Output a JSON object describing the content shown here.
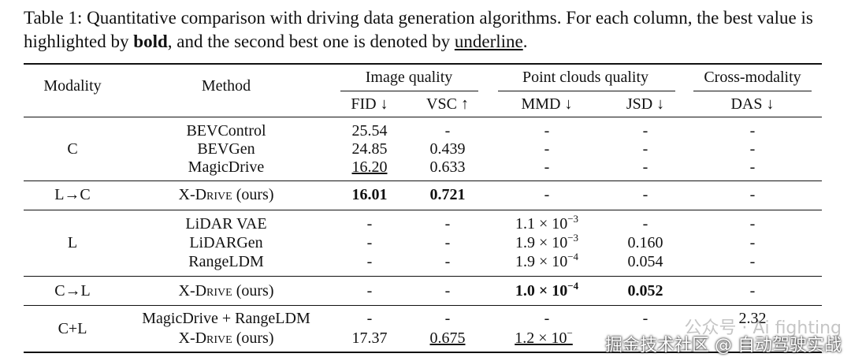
{
  "caption": {
    "prefix": "Table 1: Quantitative comparison with driving data generation algorithms. For each column, the best value is highlighted by ",
    "bold_word": "bold",
    "middle": ", and the second best one is denoted by ",
    "underline_word": "underline",
    "suffix": "."
  },
  "headers": {
    "modality": "Modality",
    "method": "Method",
    "image_quality": "Image quality",
    "point_clouds_quality": "Point clouds quality",
    "cross_modality": "Cross-modality",
    "fid": "FID ↓",
    "vsc": "VSC ↑",
    "mmd": "MMD ↓",
    "jsd": "JSD ↓",
    "das": "DAS ↓"
  },
  "groups": [
    {
      "modality": "C",
      "rows": [
        {
          "method": "BEVControl",
          "fid": "25.54",
          "vsc": "-",
          "mmd": "-",
          "jsd": "-",
          "das": "-"
        },
        {
          "method": "BEVGen",
          "fid": "24.85",
          "vsc": "0.439",
          "mmd": "-",
          "jsd": "-",
          "das": "-"
        },
        {
          "method": "MagicDrive",
          "fid": "16.20",
          "vsc": "0.633",
          "mmd": "-",
          "jsd": "-",
          "das": "-"
        }
      ]
    },
    {
      "modality": "L→C",
      "rows": [
        {
          "method_prefix": "X-",
          "method_sc": "Drive",
          "method_suffix": " (ours)",
          "fid": "16.01",
          "vsc": "0.721",
          "mmd": "-",
          "jsd": "-",
          "das": "-"
        }
      ]
    },
    {
      "modality": "L",
      "rows": [
        {
          "method": "LiDAR VAE",
          "fid": "-",
          "vsc": "-",
          "mmd_base": "1.1 × 10",
          "mmd_exp": "−3",
          "jsd": "-",
          "das": "-"
        },
        {
          "method": "LiDARGen",
          "fid": "-",
          "vsc": "-",
          "mmd_base": "1.9 × 10",
          "mmd_exp": "−3",
          "jsd": "0.160",
          "das": "-"
        },
        {
          "method": "RangeLDM",
          "fid": "-",
          "vsc": "-",
          "mmd_base": "1.9 × 10",
          "mmd_exp": "−4",
          "jsd": "0.054",
          "das": "-"
        }
      ]
    },
    {
      "modality": "C→L",
      "rows": [
        {
          "method_prefix": "X-",
          "method_sc": "Drive",
          "method_suffix": " (ours)",
          "fid": "-",
          "vsc": "-",
          "mmd_base": "1.0 × 10",
          "mmd_exp": "−4",
          "jsd": "0.052",
          "das": "-"
        }
      ]
    },
    {
      "modality": "C+L",
      "rows": [
        {
          "method": "MagicDrive + RangeLDM",
          "fid": "-",
          "vsc": "-",
          "mmd": "-",
          "jsd": "-",
          "das": "2.32"
        },
        {
          "method_prefix": "X-",
          "method_sc": "Drive",
          "method_suffix": " (ours)",
          "fid": "17.37",
          "vsc": "0.675",
          "mmd_base": "1.2 × 10",
          "mmd_exp": "−",
          "jsd": "",
          "das": ""
        }
      ]
    }
  ],
  "watermark": {
    "line1": "公众号 · Ai fighting",
    "line2": "掘金技术社区 @ 自动驾驶实战"
  }
}
